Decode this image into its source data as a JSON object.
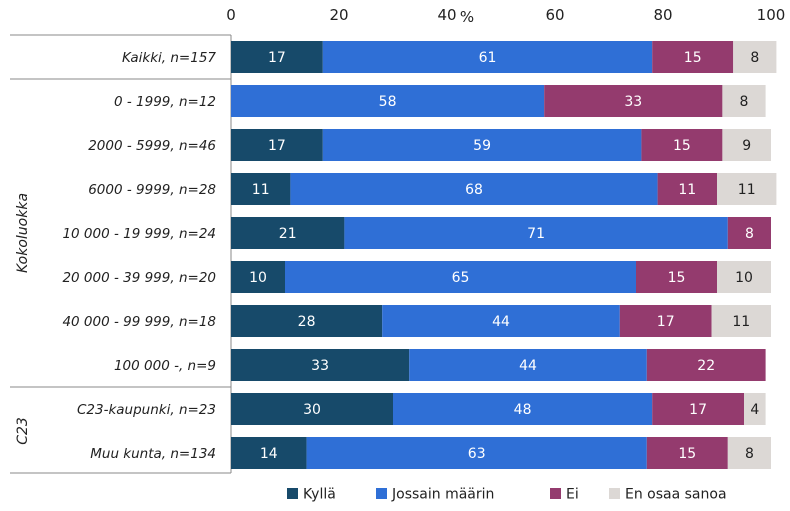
{
  "chart_data": {
    "type": "bar",
    "orientation": "horizontal",
    "stacked": true,
    "x_axis_title": "%",
    "xlim": [
      0,
      100
    ],
    "x_ticks": [
      0,
      20,
      40,
      60,
      80,
      100
    ],
    "grid": false,
    "legend_position": "bottom",
    "categories": [
      "Kaikki, n=157",
      "0 - 1999, n=12",
      "2000 - 5999, n=46",
      "6000 - 9999, n=28",
      "10 000 - 19 999, n=24",
      "20 000 - 39 999, n=20",
      "40 000 - 99 999, n=18",
      "100 000 -, n=9",
      "C23-kaupunki, n=23",
      "Muu kunta, n=134"
    ],
    "groups": [
      {
        "label": "Kokoluokka",
        "from": 1,
        "to": 7
      },
      {
        "label": "C23",
        "from": 8,
        "to": 9
      }
    ],
    "series": [
      {
        "name": "Kyllä",
        "color": "#174a6a",
        "label_color": "#ffffff",
        "values": [
          17,
          0,
          17,
          11,
          21,
          10,
          28,
          33,
          30,
          14
        ]
      },
      {
        "name": "Jossain määrin",
        "color": "#2f6fd6",
        "label_color": "#ffffff",
        "values": [
          61,
          58,
          59,
          68,
          71,
          65,
          44,
          44,
          48,
          63
        ]
      },
      {
        "name": "Ei",
        "color": "#943b6e",
        "label_color": "#ffffff",
        "values": [
          15,
          33,
          15,
          11,
          8,
          15,
          17,
          22,
          17,
          15
        ]
      },
      {
        "name": "En osaa sanoa",
        "color": "#dcd8d5",
        "label_color": "#222222",
        "values": [
          8,
          8,
          9,
          11,
          0,
          10,
          11,
          0,
          4,
          8
        ]
      }
    ]
  }
}
